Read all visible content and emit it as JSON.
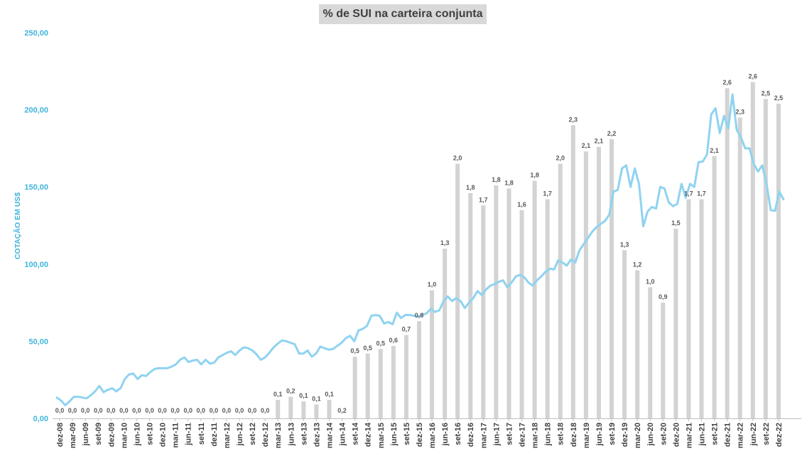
{
  "chart_data": {
    "type": "bar+line",
    "title": "% de SUI na carteira conjunta",
    "ylabel": "COTAÇÃO EM US$",
    "ylim": [
      0,
      250
    ],
    "yticks": [
      "0,00",
      "50,00",
      "100,00",
      "150,00",
      "200,00",
      "250,00"
    ],
    "colors": {
      "bars": "#d3d3d3",
      "line": "#8fd3f0",
      "axis_text": "#3fb4dc",
      "label_text": "#595959"
    },
    "x_tick_labels": [
      "dez-08",
      "mar-09",
      "jun-09",
      "set-09",
      "dez-09",
      "mar-10",
      "jun-10",
      "set-10",
      "dez-10",
      "mar-11",
      "jun-11",
      "set-11",
      "dez-11",
      "mar-12",
      "jun-12",
      "set-12",
      "dez-12",
      "mar-13",
      "jun-13",
      "set-13",
      "dez-13",
      "mar-14",
      "jun-14",
      "set-14",
      "dez-14",
      "mar-15",
      "jun-15",
      "set-15",
      "dez-15",
      "mar-16",
      "jun-16",
      "set-16",
      "dez-16",
      "mar-17",
      "jun-17",
      "set-17",
      "dez-17",
      "mar-18",
      "jun-18",
      "set-18",
      "dez-18",
      "mar-19",
      "jun-19",
      "set-19",
      "dez-19",
      "mar-20",
      "jun-20",
      "set-20",
      "dez-20",
      "mar-21",
      "jun-21",
      "set-21",
      "dez-21",
      "mar-22",
      "jun-22",
      "set-22",
      "dez-22"
    ],
    "bar_series": {
      "bar_values": [
        0,
        0,
        0,
        0,
        0,
        0,
        0,
        0,
        0,
        0,
        0,
        0,
        0,
        0,
        0,
        0,
        0,
        12,
        14,
        11,
        9,
        12,
        0,
        40,
        42,
        45,
        47,
        54,
        63,
        83,
        110,
        165,
        146,
        138,
        151,
        149,
        135,
        154,
        142,
        165,
        190,
        173,
        176,
        181,
        109,
        96,
        85,
        75,
        123,
        142,
        142,
        170,
        214,
        195,
        218,
        207,
        204
      ],
      "labels": [
        "0,0",
        "0,0",
        "0,0",
        "0,0",
        "0,0",
        "0,0",
        "0,0",
        "0,0",
        "0,0",
        "0,0",
        "0,0",
        "0,0",
        "0,0",
        "0,0",
        "0,0",
        "0,0",
        "0,0",
        "0,1",
        "0,2",
        "0,1",
        "0,1",
        "0,1",
        "0,2",
        "0,5",
        "0,5",
        "0,5",
        "0,6",
        "0,7",
        "0,8",
        "1,0",
        "1,3",
        "2,0",
        "1,8",
        "1,7",
        "1,8",
        "1,8",
        "1,6",
        "1,8",
        "1,7",
        "2,0",
        "2,3",
        "2,1",
        "2,1",
        "2,2",
        "1,3",
        "1,2",
        "1,0",
        "0,9",
        "1,5",
        "1,7",
        "1,7",
        "2,1",
        "2,6",
        "2,3",
        "2,6",
        "2,5",
        "2,5"
      ]
    },
    "line_series": {
      "values": [
        13.5,
        11.5,
        8.5,
        11,
        14,
        14,
        13.5,
        13,
        15,
        17.5,
        21,
        17,
        18.5,
        19.5,
        17.5,
        19.5,
        25.5,
        28.5,
        29,
        25.5,
        28,
        27.5,
        30,
        32,
        32.5,
        32.5,
        32.5,
        33.5,
        35,
        38,
        39.5,
        36.5,
        37.5,
        38,
        35,
        38,
        35.5,
        36,
        39.5,
        41,
        42.5,
        43.5,
        41,
        44,
        46,
        45.5,
        44,
        41.5,
        38,
        39.5,
        42.5,
        46,
        48.5,
        50.5,
        50,
        49,
        48,
        42,
        42,
        44,
        40,
        42,
        46.5,
        45.5,
        44.5,
        45,
        47,
        49,
        52,
        53.5,
        50,
        57,
        58,
        60,
        66.5,
        67,
        66.5,
        61.5,
        62.5,
        61,
        68.5,
        65,
        67,
        67,
        66.5,
        66,
        67,
        68,
        71,
        69,
        70,
        76,
        79,
        76,
        78,
        76,
        71.5,
        75,
        78,
        82.5,
        80,
        83.5,
        86,
        87,
        88.5,
        89.5,
        85,
        88,
        92,
        93,
        91.5,
        88,
        86,
        89.5,
        92,
        95,
        97,
        96.5,
        102.5,
        101,
        99,
        103,
        101,
        109,
        113,
        117,
        121,
        124,
        126,
        128,
        132,
        147,
        148,
        162,
        164,
        150,
        162,
        152,
        124.5,
        134,
        137,
        136,
        150,
        149,
        140,
        137.5,
        139,
        152,
        143,
        152,
        150,
        166,
        166.5,
        171,
        197,
        201,
        185,
        196,
        188,
        210,
        187,
        182,
        175,
        175,
        165,
        160,
        164,
        152,
        135,
        134.5,
        147,
        142
      ]
    }
  }
}
